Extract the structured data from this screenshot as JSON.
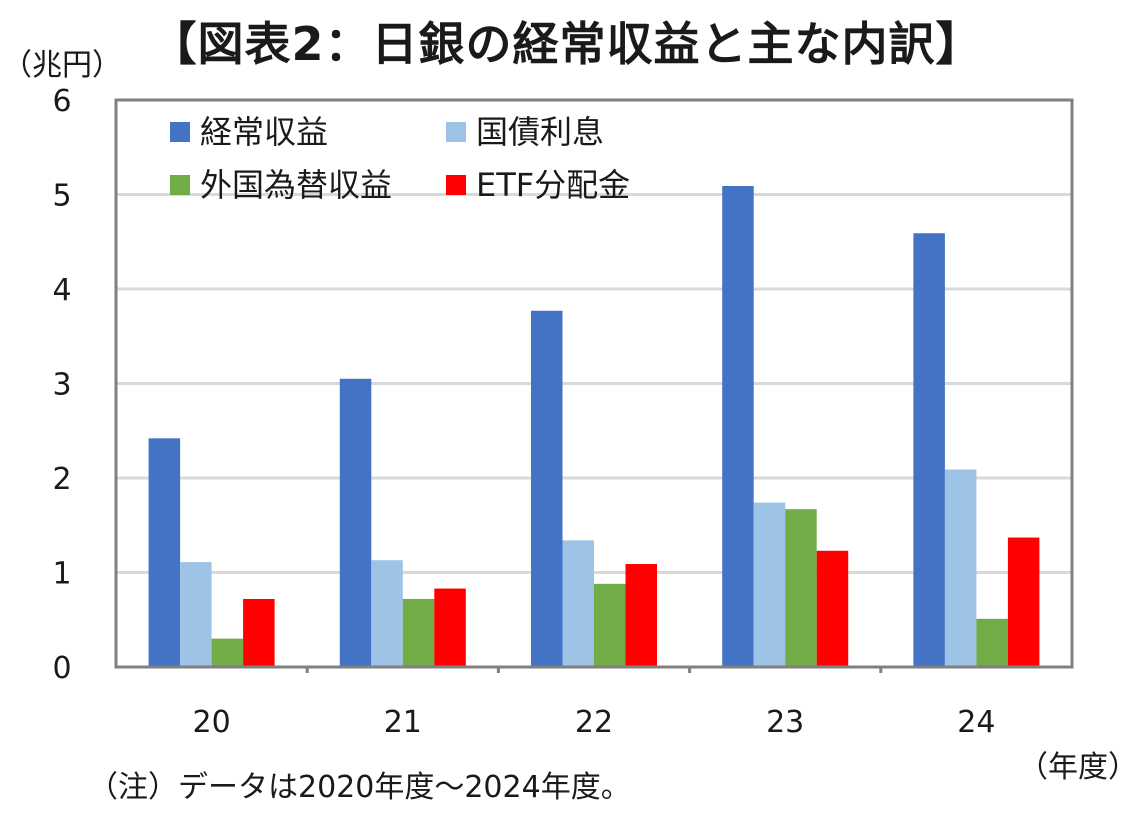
{
  "chart_data": {
    "type": "bar",
    "title": "【図表2：日銀の経常収益と主な内訳】",
    "ylabel": "（兆円）",
    "xlabel": "（年度）",
    "note": "（注）データは2020年度～2024年度。",
    "categories": [
      "20",
      "21",
      "22",
      "23",
      "24"
    ],
    "ylim": [
      0,
      6
    ],
    "yticks": [
      0,
      1,
      2,
      3,
      4,
      5,
      6
    ],
    "grid": true,
    "legend_position": "top-left",
    "series": [
      {
        "name": "経常収益",
        "color": "#4472c4",
        "values": [
          2.42,
          3.05,
          3.77,
          5.09,
          4.59
        ]
      },
      {
        "name": "国債利息",
        "color": "#9dc3e6",
        "values": [
          1.11,
          1.13,
          1.34,
          1.74,
          2.09
        ]
      },
      {
        "name": "外国為替収益",
        "color": "#70ad47",
        "values": [
          0.3,
          0.72,
          0.88,
          1.67,
          0.51
        ]
      },
      {
        "name": "ETF分配金",
        "color": "#ff0000",
        "values": [
          0.72,
          0.83,
          1.09,
          1.23,
          1.37
        ]
      }
    ]
  }
}
